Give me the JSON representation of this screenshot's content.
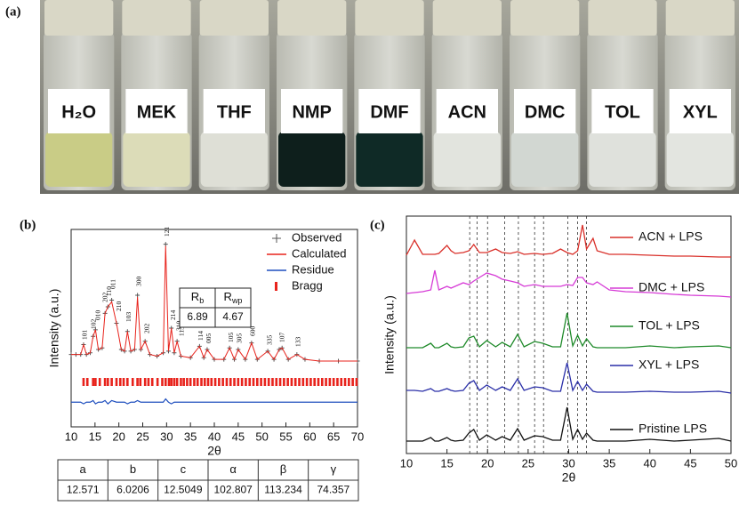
{
  "panel_a": {
    "label": "(a)",
    "vials": [
      {
        "label": "H₂O",
        "liquid": "#c9cc86"
      },
      {
        "label": "MEK",
        "liquid": "#dcdcb8"
      },
      {
        "label": "THF",
        "liquid": "#dedfd6"
      },
      {
        "label": "NMP",
        "liquid": "#0e1f1c"
      },
      {
        "label": "DMF",
        "liquid": "#0f2a26"
      },
      {
        "label": "ACN",
        "liquid": "#e2e4de"
      },
      {
        "label": "DMC",
        "liquid": "#d2d7d2"
      },
      {
        "label": "TOL",
        "liquid": "#dfe1dc"
      },
      {
        "label": "XYL",
        "liquid": "#e3e5e0"
      }
    ]
  },
  "panel_b": {
    "label": "(b)",
    "chart_data": {
      "type": "line",
      "x_label": "2θ",
      "y_label": "Intensity (a.u.)",
      "xlim": [
        10,
        70
      ],
      "xticks": [
        10,
        15,
        20,
        25,
        30,
        35,
        40,
        45,
        50,
        55,
        60,
        65,
        70
      ],
      "ylim": [
        -20,
        100
      ],
      "x": [
        10,
        11,
        12,
        12.6,
        13.2,
        14,
        14.6,
        15.1,
        15.7,
        16.5,
        17.1,
        17.7,
        18.5,
        19.5,
        20.5,
        21.2,
        21.8,
        22.5,
        23.3,
        23.9,
        24.6,
        25.5,
        26.5,
        28,
        29.3,
        29.8,
        30.4,
        31,
        31.6,
        32.2,
        33,
        35,
        36.9,
        37.8,
        38.5,
        40,
        42,
        43.2,
        44.2,
        45,
        46.5,
        47.8,
        49,
        51.2,
        52.5,
        53.6,
        54.2,
        55.5,
        57.3,
        59,
        62,
        66,
        70
      ],
      "series": [
        {
          "name": "Observed",
          "color": "#555555",
          "values": [
            24,
            24,
            24,
            30,
            24,
            25,
            35,
            39,
            27,
            28,
            49,
            53,
            57,
            43,
            27,
            26,
            38,
            26,
            27,
            60,
            27,
            32,
            24,
            23,
            25,
            91,
            26,
            40,
            25,
            32,
            23,
            22,
            29,
            22,
            27,
            21,
            21,
            28,
            21,
            27,
            21,
            31,
            21,
            26,
            21,
            27,
            28,
            21,
            24,
            21,
            20,
            20,
            20
          ]
        },
        {
          "name": "Calculated",
          "color": "#e8231c",
          "values": [
            24,
            24,
            24,
            30,
            24,
            25,
            35,
            39,
            27,
            28,
            49,
            53,
            56,
            43,
            27,
            26,
            38,
            26,
            27,
            59,
            27,
            32,
            24,
            23,
            25,
            90,
            26,
            40,
            25,
            32,
            23,
            22,
            29,
            22,
            27,
            21,
            21,
            28,
            21,
            27,
            21,
            31,
            21,
            26,
            21,
            27,
            28,
            21,
            24,
            21,
            20,
            20,
            20
          ]
        },
        {
          "name": "Residue",
          "color": "#1f4fbf",
          "values": [
            -5,
            -5,
            -5,
            -6,
            -5,
            -5,
            -4,
            -6,
            -5,
            -5,
            -4,
            -6,
            -4,
            -5,
            -5,
            -5,
            -6,
            -5,
            -5,
            -4,
            -5,
            -5,
            -5,
            -5,
            -5,
            -3,
            -5,
            -6,
            -5,
            -5,
            -5,
            -5,
            -5,
            -5,
            -5,
            -5,
            -5,
            -5,
            -5,
            -5,
            -5,
            -5,
            -5,
            -5,
            -5,
            -5,
            -5,
            -5,
            -5,
            -5,
            -5,
            -5,
            -5
          ]
        }
      ],
      "bragg": {
        "name": "Bragg",
        "color": "#e8231c",
        "positions": [
          12.6,
          13.4,
          14.6,
          15.1,
          16.0,
          17.1,
          17.7,
          18.5,
          19.5,
          20.3,
          21.0,
          21.8,
          22.9,
          23.9,
          24.5,
          25.5,
          26.2,
          27.0,
          28.1,
          29.1,
          29.8,
          30.5,
          31.0,
          31.6,
          32.2,
          33.0,
          33.6,
          34.3,
          35.0,
          35.8,
          36.5,
          37.3,
          38.0,
          38.7,
          39.4,
          40.2,
          41.0,
          41.8,
          42.6,
          43.4,
          44.2,
          45.0,
          45.8,
          46.6,
          47.4,
          48.2,
          49.0,
          49.8,
          50.6,
          51.4,
          52.2,
          53.0,
          53.8,
          54.6,
          55.4,
          56.2,
          57.0,
          57.8,
          58.6,
          59.4,
          60.2,
          61.0,
          61.8,
          62.6,
          63.4,
          64.2,
          65.0,
          65.8,
          66.6,
          67.4,
          68.2,
          69.0,
          69.8
        ]
      },
      "peak_labels": [
        "101",
        "102",
        "010",
        "202",
        "110",
        "011",
        "210",
        "103",
        "300",
        "202",
        "121",
        "214",
        "310",
        "113",
        "114",
        "005",
        "105",
        "305",
        "600",
        "335",
        "107",
        "133"
      ],
      "fit_table": {
        "header": [
          {
            "main": "R",
            "sub": "b"
          },
          {
            "main": "R",
            "sub": "wp"
          }
        ],
        "row": [
          "6.89",
          "4.67"
        ]
      }
    },
    "lattice_table": {
      "header": [
        "a",
        "b",
        "c",
        "α",
        "β",
        "γ"
      ],
      "row": [
        "12.571",
        "6.0206",
        "12.5049",
        "102.807",
        "113.234",
        "74.357"
      ]
    }
  },
  "panel_c": {
    "label": "(c)",
    "chart_data": {
      "type": "line",
      "x_label": "2θ",
      "y_label": "Intensity (a.u.)",
      "xlim": [
        10,
        50
      ],
      "xticks": [
        10,
        15,
        20,
        25,
        30,
        35,
        40,
        45,
        50
      ],
      "ylim": [
        0,
        267
      ],
      "reference_lines": [
        17.8,
        18.7,
        20.0,
        22.1,
        23.8,
        25.8,
        26.9,
        29.9,
        31.1,
        32.2
      ],
      "x": [
        10,
        11,
        12,
        13,
        13.5,
        14,
        15,
        15.5,
        16,
        17,
        17.7,
        18.3,
        19,
        19.9,
        21,
        21.8,
        22.8,
        23.7,
        24.5,
        25.8,
        26.8,
        28,
        29,
        29.8,
        30.5,
        31.1,
        31.7,
        32.2,
        33,
        33.5,
        35,
        37,
        40,
        43,
        45,
        48.5,
        50
      ],
      "series": [
        {
          "name": "Pristine LPS",
          "color": "#111111",
          "values": [
            1,
            1,
            1,
            5,
            1,
            1,
            5,
            2,
            1,
            2,
            10,
            14,
            2,
            8,
            2,
            6,
            2,
            15,
            2,
            7,
            6,
            2,
            2,
            39,
            3,
            14,
            3,
            10,
            2,
            1,
            1,
            1,
            3,
            1,
            2,
            4,
            1
          ]
        },
        {
          "name": "XYL + LPS",
          "color": "#2a2fa8",
          "values": [
            4,
            4,
            3,
            6,
            3,
            3,
            6,
            4,
            3,
            4,
            12,
            15,
            4,
            10,
            4,
            8,
            4,
            17,
            4,
            8,
            7,
            3,
            3,
            35,
            4,
            14,
            4,
            11,
            3,
            2,
            2,
            2,
            3,
            2,
            2,
            3,
            1
          ]
        },
        {
          "name": "TOL + LPS",
          "color": "#1f8a2a",
          "values": [
            1,
            1,
            1,
            6,
            1,
            1,
            6,
            2,
            1,
            2,
            12,
            14,
            2,
            9,
            2,
            7,
            2,
            16,
            2,
            8,
            6,
            2,
            2,
            40,
            3,
            15,
            3,
            11,
            2,
            1,
            1,
            1,
            3,
            1,
            2,
            3,
            1
          ]
        },
        {
          "name": "DMC + LPS",
          "color": "#d63bd6",
          "values": [
            2,
            3,
            4,
            6,
            28,
            6,
            10,
            8,
            10,
            14,
            12,
            16,
            20,
            25,
            22,
            18,
            16,
            14,
            10,
            12,
            10,
            10,
            10,
            12,
            11,
            20,
            20,
            14,
            12,
            15,
            6,
            4,
            3,
            1,
            0,
            -1,
            -2
          ]
        },
        {
          "name": "ACN + LPS",
          "color": "#d9302a",
          "values": [
            3,
            20,
            4,
            4,
            4,
            5,
            14,
            8,
            5,
            6,
            8,
            15,
            6,
            6,
            10,
            6,
            5,
            7,
            4,
            5,
            4,
            5,
            10,
            6,
            4,
            8,
            37,
            10,
            22,
            8,
            4,
            4,
            3,
            2,
            2,
            1,
            1
          ]
        }
      ]
    }
  }
}
